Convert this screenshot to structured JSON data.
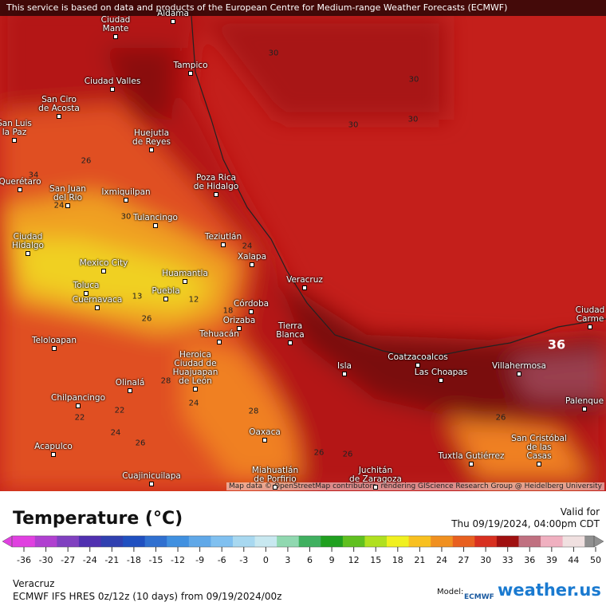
{
  "banner": "This service is based on data and products of the European Centre for Medium-range Weather Forecasts (ECMWF)",
  "map": {
    "cities": [
      "Aldama",
      "Ciudad\nMante",
      "Tampico",
      "Ciudad Valles",
      "San Ciro\nde Acosta",
      "Huejutla\nde Reyes",
      "San Luis\nla Paz",
      "Querétaro",
      "San Juan\ndel Rio",
      "Ixmiquilpan",
      "Poza Rica\nde Hidalgo",
      "Tulancingo",
      "Ciudad\nHidalgo",
      "Teziutlán",
      "Xalapa",
      "Mexico City",
      "Huamantla",
      "Toluca",
      "Cuernavaca",
      "Puebla",
      "Veracruz",
      "Córdoba",
      "Orizaba",
      "Tierra\nBlanca",
      "Tehuacán",
      "Teloloapan",
      "Heroica\nCiudad de\nHuajuapan\nde León",
      "Coatzacoalcos",
      "Isla",
      "Las Choapas",
      "Villahermosa",
      "Ciudad\nCarme",
      "Olinalá",
      "Chilpancingo",
      "Palenque",
      "Oaxaca",
      "San Cristóbal\nde las\nCasas",
      "Acapulco",
      "Tuxtla Gutiérrez",
      "Cuajinicuilapa",
      "Miahuatlán\nde Porfirio",
      "Juchitán\nde Zaragoza"
    ],
    "contours": [
      30,
      30,
      30,
      30,
      36,
      34,
      24,
      30,
      26,
      24,
      18,
      13,
      12,
      26,
      22,
      22,
      24,
      28,
      26,
      28,
      26,
      24,
      26,
      26
    ],
    "attribution": "Map data © OpenStreetMap contributors, rendering GIScience Research Group @ Heidelberg University"
  },
  "legend": {
    "title": "Temperature (°C)",
    "valid_label": "Valid for",
    "valid_time": "Thu 09/19/2024, 04:00pm CDT",
    "ticks": [
      -36,
      -30,
      -27,
      -24,
      -21,
      -18,
      -15,
      -12,
      -9,
      -6,
      -3,
      0,
      3,
      6,
      9,
      12,
      15,
      18,
      21,
      24,
      27,
      30,
      33,
      36,
      39,
      44,
      50
    ],
    "colors": [
      "#e040e0",
      "#b040d0",
      "#8040c0",
      "#5030b0",
      "#3040b0",
      "#2050c0",
      "#3070d0",
      "#4090e0",
      "#60a8e8",
      "#80c0f0",
      "#a8d8f0",
      "#c8e8f0",
      "#90d8b0",
      "#40b060",
      "#20a020",
      "#60c020",
      "#b0e020",
      "#f0f020",
      "#f8c020",
      "#f09020",
      "#e86020",
      "#d83020",
      "#a01010",
      "#c07080",
      "#f0b0c0",
      "#f0e0e0",
      "#909090"
    ]
  },
  "footer": {
    "location": "Veracruz",
    "model_run": "ECMWF IFS HRES 0z/12z (10 days) from 09/19/2024/00z",
    "model_label": "Model:",
    "model_name": "ECMWF",
    "brand": "weather.us"
  }
}
